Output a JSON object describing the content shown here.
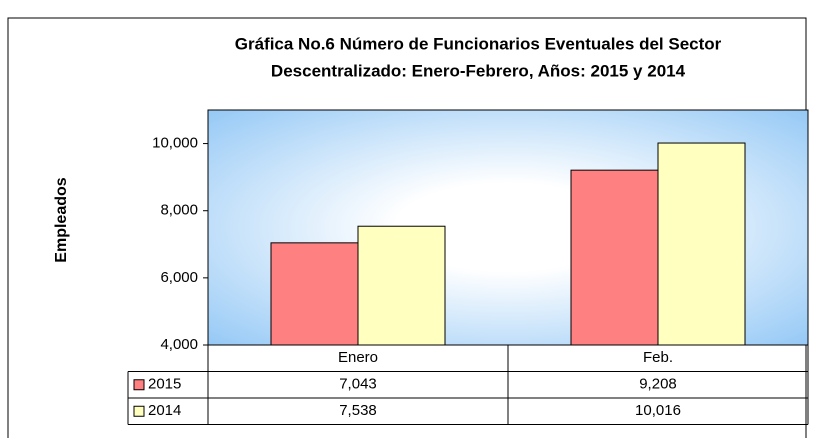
{
  "chart_data": {
    "type": "bar",
    "title": [
      "Gráfica No.6 Número de Funcionarios Eventuales del Sector",
      "Descentralizado: Enero-Febrero, Años: 2015 y 2014"
    ],
    "y_label": "Empleados",
    "categories": [
      "Enero",
      "Feb."
    ],
    "series": [
      {
        "name": "2015",
        "color": "#ff8080",
        "values": [
          7043,
          9208
        ],
        "value_labels": [
          "7,043",
          "9,208"
        ]
      },
      {
        "name": "2014",
        "color": "#ffffc0",
        "values": [
          7538,
          10016
        ],
        "value_labels": [
          "7,538",
          "10,016"
        ]
      }
    ],
    "ylim": [
      4000,
      11000
    ],
    "yticks": [
      {
        "value": 4000,
        "label": "4,000"
      },
      {
        "value": 6000,
        "label": "6,000"
      },
      {
        "value": 8000,
        "label": "8,000"
      },
      {
        "value": 10000,
        "label": "10,000"
      }
    ],
    "grid": false
  }
}
